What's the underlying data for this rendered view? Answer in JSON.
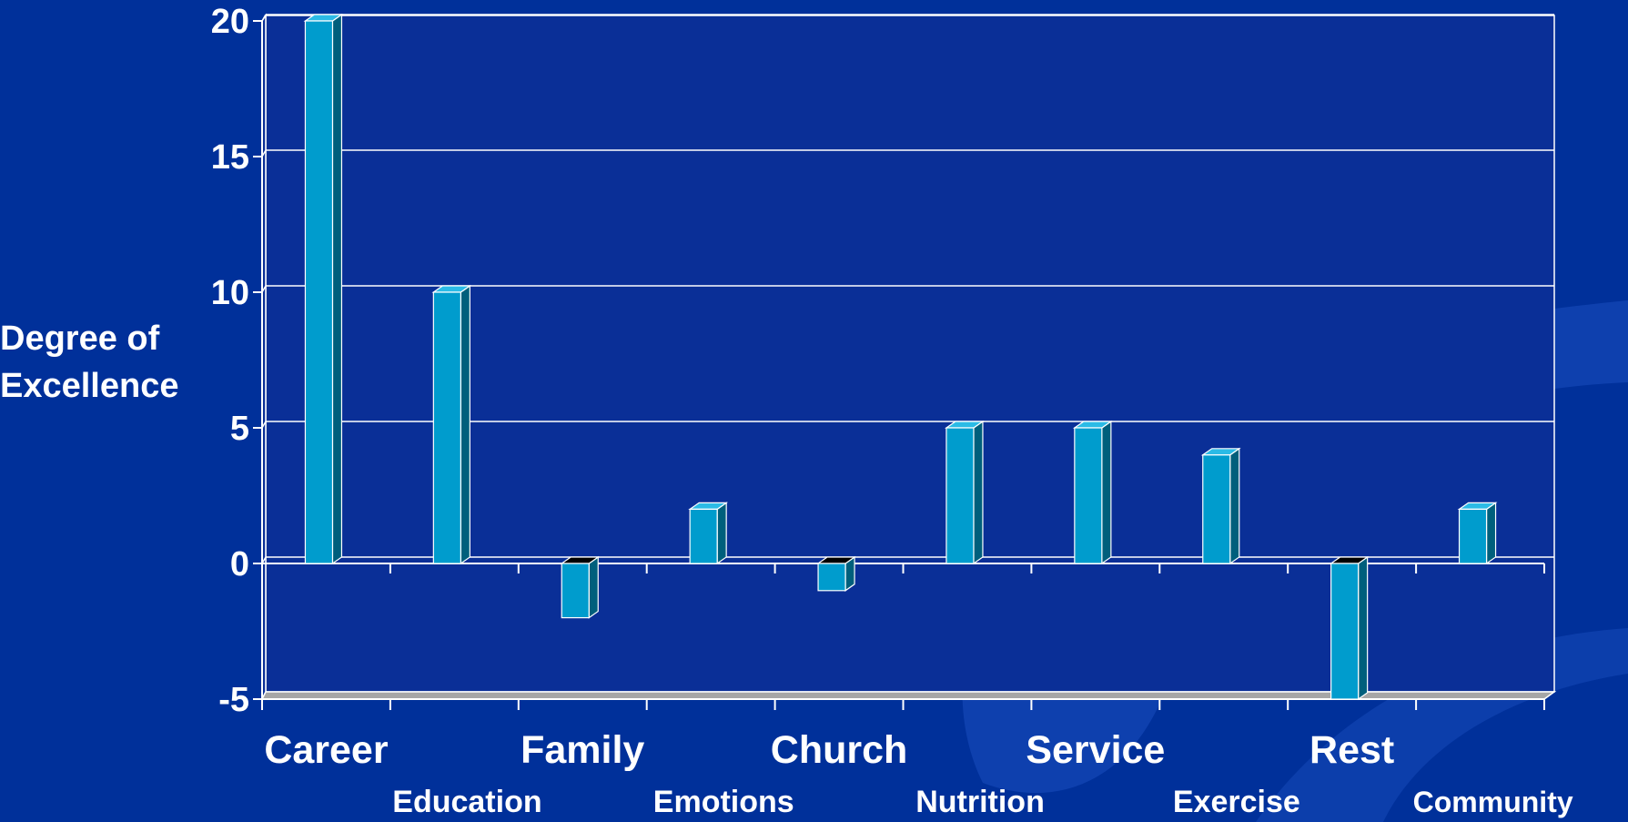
{
  "chart_data": {
    "type": "bar",
    "title": "",
    "xlabel": "",
    "ylabel": "Degree of Excellence",
    "ylabel_lines": [
      "Degree of",
      "Excellence"
    ],
    "categories": [
      "Career",
      "Education",
      "Family",
      "Emotions",
      "Church",
      "Nutrition",
      "Service",
      "Exercise",
      "Rest",
      "Community"
    ],
    "values": [
      20,
      10,
      -2,
      2,
      -1,
      5,
      5,
      4,
      -5,
      2
    ],
    "ylim": [
      -5,
      20
    ],
    "yticks": [
      -5,
      0,
      5,
      10,
      15,
      20
    ],
    "ytick_labels": [
      "-5",
      "0",
      "5",
      "10",
      "15",
      "20"
    ],
    "grid": true,
    "legend": "none",
    "bar_style": "3d",
    "colors": {
      "background": "#00309a",
      "plot_background": "#0a2f97",
      "bar_front": "#009ccd",
      "bar_side": "#005f7c",
      "bar_top": "#2bbbe6",
      "grid": "#ffffff",
      "floor": "#a6a6a6",
      "text": "#ffffff",
      "swoosh": "#1a4fc0"
    }
  }
}
